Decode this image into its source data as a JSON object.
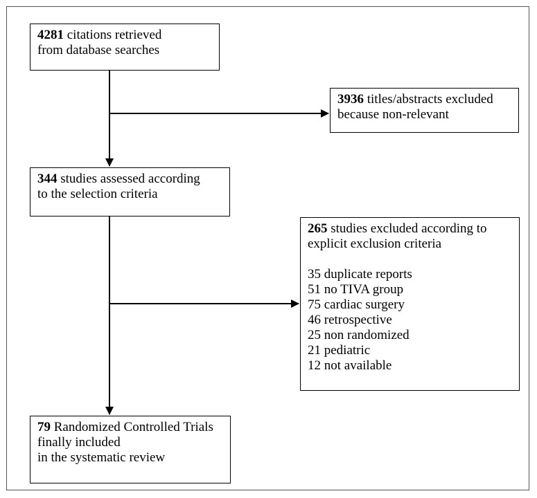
{
  "boxes": {
    "retrieved": {
      "count": "4281",
      "line1": "citations retrieved",
      "line2": "from database searches"
    },
    "excluded_titles": {
      "count": "3936",
      "line1": "titles/abstracts excluded",
      "line2": "because non-relevant"
    },
    "assessed": {
      "count": "344",
      "line1": "studies assessed according",
      "line2": "to the selection criteria"
    },
    "excluded_studies": {
      "count": "265",
      "line1": "studies excluded according to",
      "line2": "explicit exclusion criteria",
      "reasons": [
        "35 duplicate reports",
        "51 no TIVA group",
        "75 cardiac surgery",
        "46 retrospective",
        "25 non randomized",
        "21 pediatric",
        "12 not available"
      ]
    },
    "included": {
      "count": "79",
      "line1": "Randomized Controlled Trials",
      "line2": "finally included",
      "line3": "in the systematic review"
    }
  }
}
